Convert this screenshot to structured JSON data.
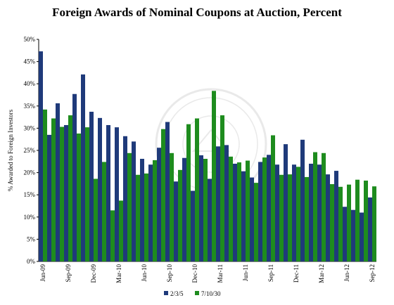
{
  "chart_data": {
    "type": "bar",
    "title": "Foreign Awards of Nominal Coupons at Auction, Percent",
    "ylabel": "% Awarded to Foreign Investors",
    "xlabel": "",
    "ylim": [
      0,
      50
    ],
    "yticks": [
      "0%",
      "5%",
      "10%",
      "15%",
      "20%",
      "25%",
      "30%",
      "35%",
      "40%",
      "45%",
      "50%"
    ],
    "grid": false,
    "legend_position": "bottom-center",
    "categories": [
      "Jun-09",
      "Jul-09",
      "Aug-09",
      "Sep-09",
      "Oct-09",
      "Nov-09",
      "Dec-09",
      "Jan-10",
      "Feb-10",
      "Mar-10",
      "Apr-10",
      "May-10",
      "Jun-10",
      "Jul-10",
      "Aug-10",
      "Sep-10",
      "Oct-10",
      "Nov-10",
      "Dec-10",
      "Jan-11",
      "Feb-11",
      "Mar-11",
      "Apr-11",
      "May-11",
      "Jun-11",
      "Jul-11",
      "Aug-11",
      "Sep-11",
      "Oct-11",
      "Nov-11",
      "Dec-11",
      "Jan-12",
      "Feb-12",
      "Mar-12",
      "Apr-12",
      "May-12",
      "Jun-12",
      "Jul-12",
      "Aug-12",
      "Sep-12"
    ],
    "tick_labels": [
      "Jun-09",
      "Sep-09",
      "Dec-09",
      "Mar-10",
      "Jun-10",
      "Sep-10",
      "Dec-10",
      "Mar-11",
      "Jun-11",
      "Sep-11",
      "Dec-11",
      "Mar-12",
      "Jun-12",
      "Sep-12"
    ],
    "series": [
      {
        "name": "2/3/5",
        "color": "#1f3a7a",
        "values": [
          47.3,
          28.5,
          35.6,
          30.7,
          37.7,
          42.1,
          33.7,
          32.3,
          30.7,
          30.2,
          28.2,
          27.0,
          23.1,
          21.8,
          25.6,
          31.4,
          18.0,
          23.3,
          15.9,
          23.9,
          18.6,
          25.9,
          26.2,
          22.0,
          20.3,
          18.9,
          22.4,
          24.0,
          21.8,
          26.4,
          21.8,
          27.4,
          22.0,
          21.8,
          19.6,
          20.4,
          12.3,
          11.6,
          11.0,
          14.4
        ]
      },
      {
        "name": "7/10/30",
        "color": "#1e8c1e",
        "values": [
          34.2,
          32.2,
          30.3,
          32.9,
          28.8,
          30.2,
          18.6,
          22.4,
          11.5,
          13.7,
          24.4,
          19.5,
          19.8,
          22.8,
          29.8,
          24.4,
          20.6,
          30.9,
          32.2,
          23.1,
          38.4,
          32.9,
          23.6,
          22.3,
          22.7,
          17.7,
          23.4,
          28.4,
          19.5,
          19.6,
          21.3,
          19.0,
          24.6,
          24.4,
          17.4,
          16.8,
          17.3,
          18.4,
          18.2,
          16.9
        ]
      }
    ]
  }
}
